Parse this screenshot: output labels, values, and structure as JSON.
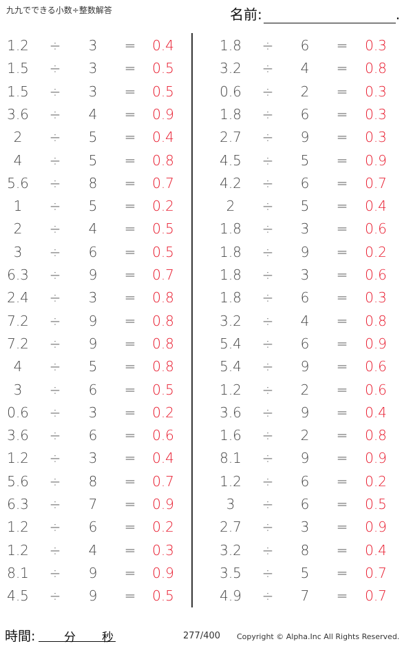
{
  "header": {
    "title": "九九でできる小数÷整数解答",
    "name_label": "名前:",
    "name_end": "."
  },
  "operators": {
    "divide": "÷",
    "equals": "="
  },
  "colors": {
    "answer": "#e8192c",
    "text": "#444444"
  },
  "columns": [
    [
      [
        "1.2",
        "3",
        "0.4"
      ],
      [
        "1.5",
        "3",
        "0.5"
      ],
      [
        "1.5",
        "3",
        "0.5"
      ],
      [
        "3.6",
        "4",
        "0.9"
      ],
      [
        "2",
        "5",
        "0.4"
      ],
      [
        "4",
        "5",
        "0.8"
      ],
      [
        "5.6",
        "8",
        "0.7"
      ],
      [
        "1",
        "5",
        "0.2"
      ],
      [
        "2",
        "4",
        "0.5"
      ],
      [
        "3",
        "6",
        "0.5"
      ],
      [
        "6.3",
        "9",
        "0.7"
      ],
      [
        "2.4",
        "3",
        "0.8"
      ],
      [
        "7.2",
        "9",
        "0.8"
      ],
      [
        "7.2",
        "9",
        "0.8"
      ],
      [
        "4",
        "5",
        "0.8"
      ],
      [
        "3",
        "6",
        "0.5"
      ],
      [
        "0.6",
        "3",
        "0.2"
      ],
      [
        "3.6",
        "6",
        "0.6"
      ],
      [
        "1.2",
        "3",
        "0.4"
      ],
      [
        "5.6",
        "8",
        "0.7"
      ],
      [
        "6.3",
        "7",
        "0.9"
      ],
      [
        "1.2",
        "6",
        "0.2"
      ],
      [
        "1.2",
        "4",
        "0.3"
      ],
      [
        "8.1",
        "9",
        "0.9"
      ],
      [
        "4.5",
        "9",
        "0.5"
      ]
    ],
    [
      [
        "1.8",
        "6",
        "0.3"
      ],
      [
        "3.2",
        "4",
        "0.8"
      ],
      [
        "0.6",
        "2",
        "0.3"
      ],
      [
        "1.8",
        "6",
        "0.3"
      ],
      [
        "2.7",
        "9",
        "0.3"
      ],
      [
        "4.5",
        "5",
        "0.9"
      ],
      [
        "4.2",
        "6",
        "0.7"
      ],
      [
        "2",
        "5",
        "0.4"
      ],
      [
        "1.8",
        "3",
        "0.6"
      ],
      [
        "1.8",
        "9",
        "0.2"
      ],
      [
        "1.8",
        "3",
        "0.6"
      ],
      [
        "1.8",
        "6",
        "0.3"
      ],
      [
        "3.2",
        "4",
        "0.8"
      ],
      [
        "5.4",
        "6",
        "0.9"
      ],
      [
        "5.4",
        "9",
        "0.6"
      ],
      [
        "1.2",
        "2",
        "0.6"
      ],
      [
        "3.6",
        "9",
        "0.4"
      ],
      [
        "1.6",
        "2",
        "0.8"
      ],
      [
        "8.1",
        "9",
        "0.9"
      ],
      [
        "1.2",
        "6",
        "0.2"
      ],
      [
        "3",
        "6",
        "0.5"
      ],
      [
        "2.7",
        "3",
        "0.9"
      ],
      [
        "3.2",
        "8",
        "0.4"
      ],
      [
        "3.5",
        "5",
        "0.7"
      ],
      [
        "4.9",
        "7",
        "0.7"
      ]
    ]
  ],
  "footer": {
    "time_label": "時間:",
    "minutes": "分",
    "seconds": "秒",
    "page": "277/400",
    "copyright": "Copyright ©  Alpha.Inc All Rights Reserved."
  }
}
